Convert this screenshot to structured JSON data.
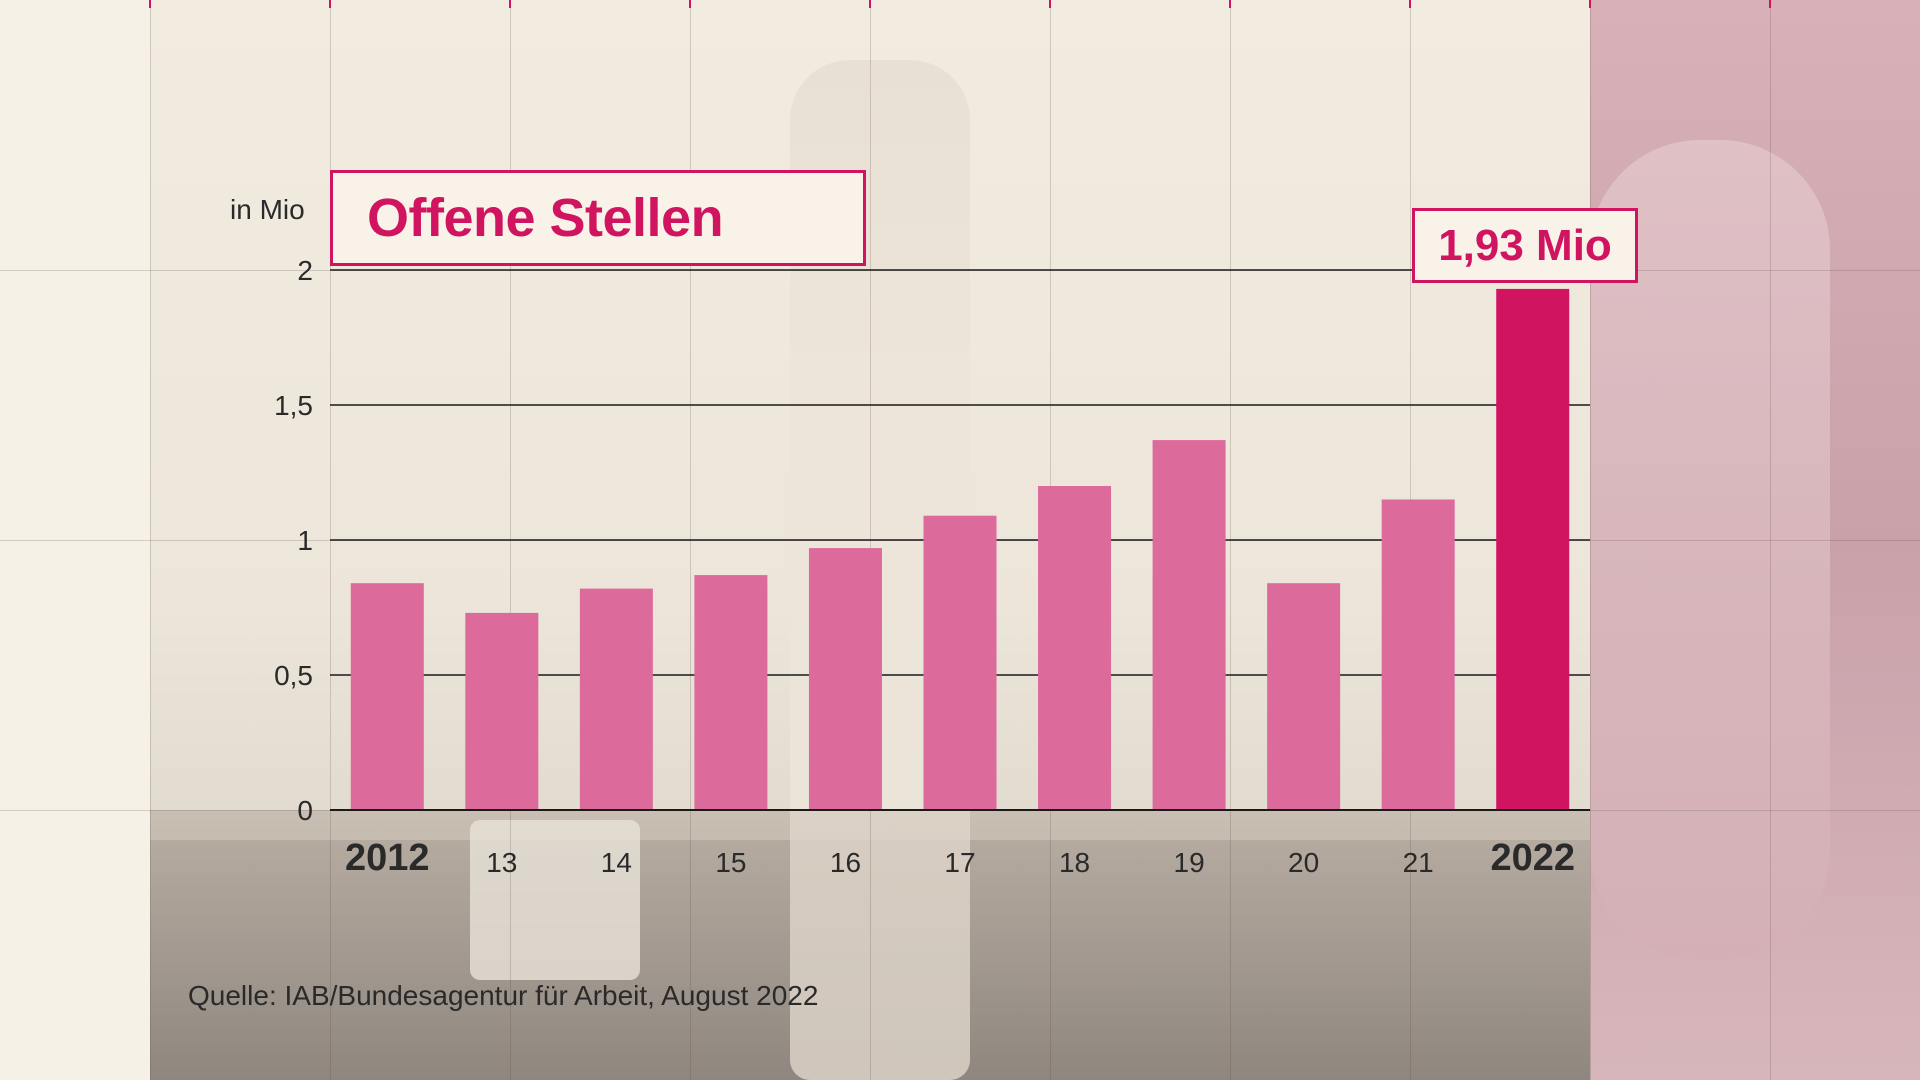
{
  "colors": {
    "bar": "#dc6a9b",
    "bar_highlight": "#d01460",
    "accent": "#d01460",
    "gridline": "#1a1a1a",
    "text": "#2a2a2a"
  },
  "chart_data": {
    "type": "bar",
    "title": "Offene Stellen",
    "unit_label": "in Mio",
    "categories": [
      "2012",
      "13",
      "14",
      "15",
      "16",
      "17",
      "18",
      "19",
      "20",
      "21",
      "2022"
    ],
    "emphasized_categories": [
      "2012",
      "2022"
    ],
    "values": [
      0.84,
      0.73,
      0.82,
      0.87,
      0.97,
      1.09,
      1.2,
      1.37,
      0.84,
      1.15,
      1.93
    ],
    "highlight_index": 10,
    "highlight_label": "1,93 Mio",
    "ylim": [
      0,
      2
    ],
    "yticks": [
      0,
      0.5,
      1,
      1.5,
      2
    ],
    "ytick_labels": [
      "0",
      "0,5",
      "1",
      "1,5",
      "2"
    ],
    "grid": true,
    "source": "Quelle: IAB/Bundesagentur für Arbeit, August 2022"
  }
}
